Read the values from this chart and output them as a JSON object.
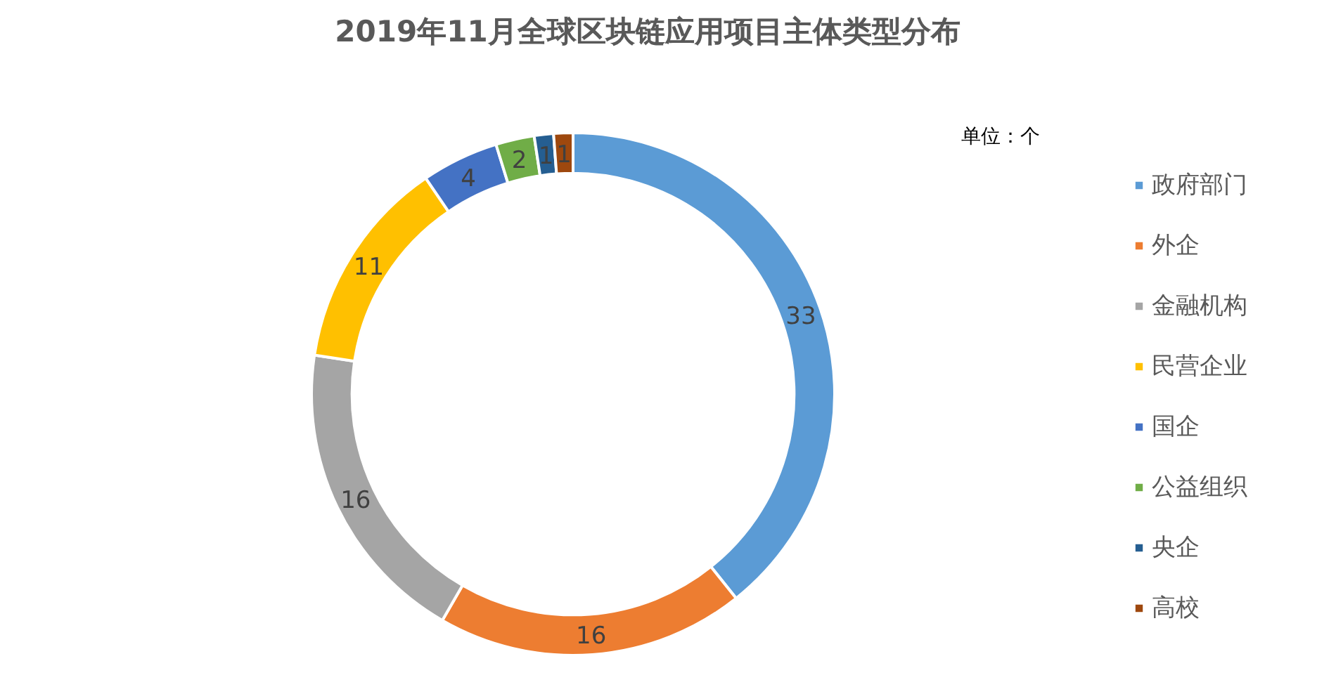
{
  "chart_data": {
    "type": "donut",
    "title": "2019年11月全球区块链应用项目主体类型分布",
    "categories": [
      "政府部门",
      "外企",
      "金融机构",
      "民营企业",
      "国企",
      "公益组织",
      "央企",
      "高校"
    ],
    "values": [
      33,
      16,
      16,
      11,
      4,
      2,
      1,
      1
    ],
    "colors": [
      "#5b9bd5",
      "#ed7d31",
      "#a5a5a5",
      "#ffc000",
      "#4472c4",
      "#70ad47",
      "#255e91",
      "#9e480e"
    ],
    "data_labels": true,
    "legend": "right",
    "annotations": [
      "单位：个"
    ]
  }
}
